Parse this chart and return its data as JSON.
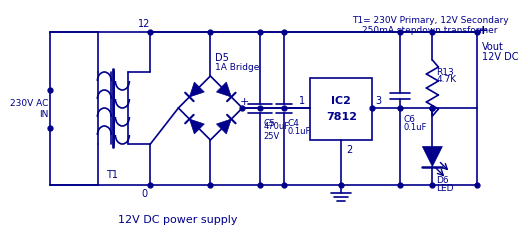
{
  "bg_color": "#ffffff",
  "line_color": "#00008B",
  "text_color": "#00008B",
  "title": "12V DC power supply",
  "note1": "230V Primary, 12V Secondary",
  "note2": "250mA stepdown transformer",
  "t1_label": "T1=",
  "t1_ref": "T1",
  "input_label": "230V AC\nIN",
  "num_12": "12",
  "num_0": "0",
  "num_1": "1",
  "num_2": "2",
  "num_3": "3",
  "d5_label": "D5",
  "d5_sub": "1A Bridge",
  "c5_label": "C5",
  "c5_val": "470uF\n25V",
  "c4_label": "C4",
  "c4_val": "0.1uF",
  "ic2_line1": "IC2",
  "ic2_line2": "7812",
  "c6_label": "C6",
  "c6_val": "0.1uF",
  "r13_label": "R13",
  "r13_val": "4.7K",
  "d6_label": "D6",
  "d6_sub": "LED",
  "vout_label": "Vout",
  "vout_val": "12V DC"
}
